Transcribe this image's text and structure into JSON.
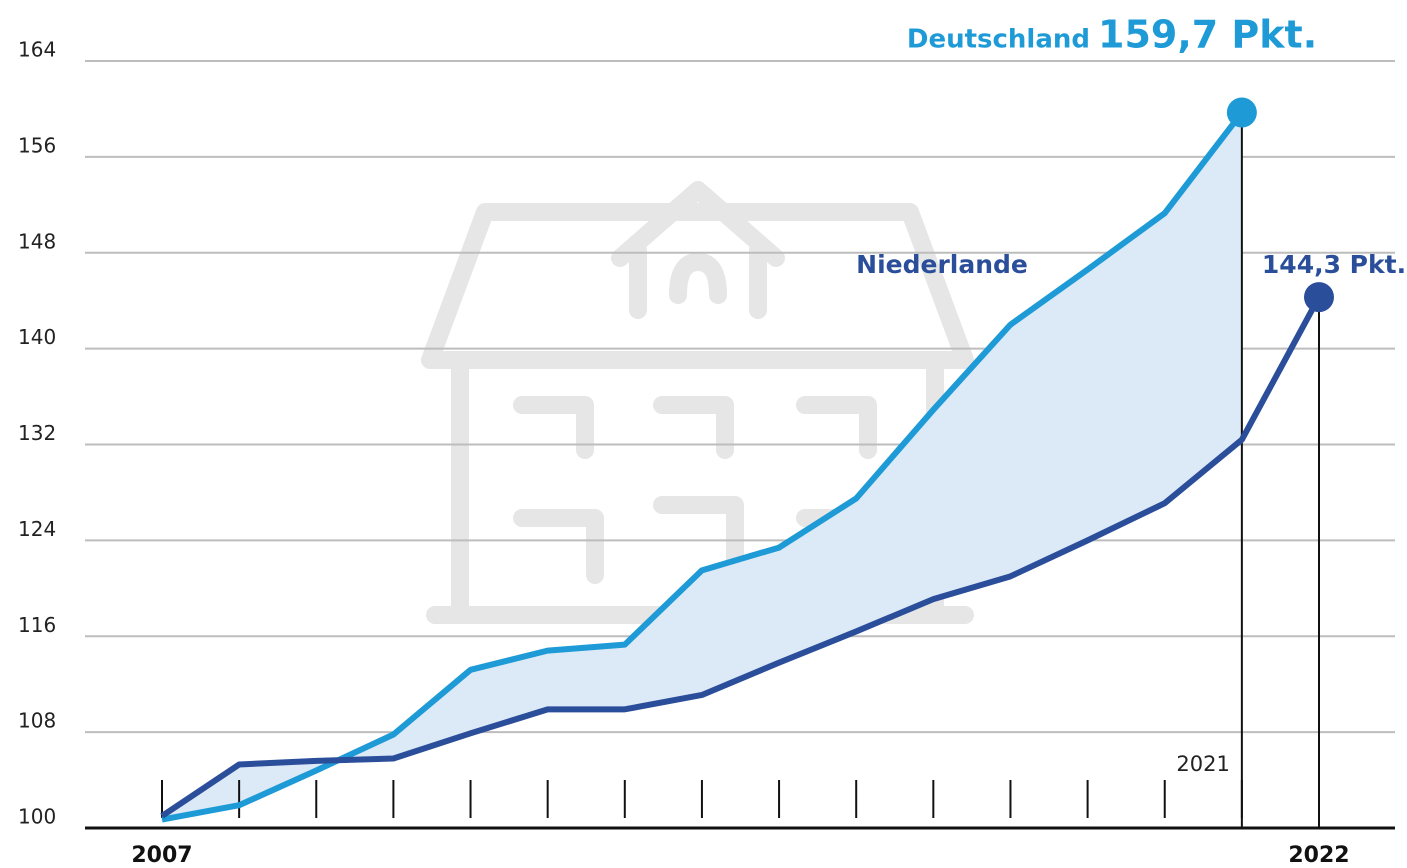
{
  "chart_data": {
    "type": "line",
    "x": [
      2007,
      2008,
      2009,
      2010,
      2011,
      2012,
      2013,
      2014,
      2015,
      2016,
      2017,
      2018,
      2019,
      2020,
      2021,
      2022
    ],
    "series": [
      {
        "name": "Deutschland",
        "color": "#1e9bd7",
        "values": [
          100.7,
          101.9,
          104.8,
          107.8,
          113.2,
          114.8,
          115.3,
          121.5,
          123.4,
          127.5,
          134.9,
          142.0,
          146.6,
          151.3,
          159.7,
          null
        ],
        "value_labels": [
          null,
          null,
          null,
          null,
          null,
          null,
          null,
          null,
          null,
          null,
          null,
          null,
          null,
          null,
          "159,7 Pkt.",
          null
        ]
      },
      {
        "name": "Niederlande",
        "color": "#2b4e9b",
        "values": [
          101.0,
          105.3,
          105.6,
          105.8,
          107.9,
          109.9,
          109.9,
          111.1,
          113.8,
          116.4,
          119.1,
          121.0,
          124.0,
          127.1,
          132.4,
          144.3
        ],
        "value_labels": [
          null,
          null,
          null,
          null,
          null,
          null,
          null,
          null,
          null,
          null,
          null,
          null,
          null,
          null,
          null,
          "144,3 Pkt."
        ]
      }
    ],
    "fill_between_color": "#dce9f7",
    "xlim": [
      2007,
      2022
    ],
    "xticks": [
      {
        "value": 2007,
        "label": "2007"
      },
      {
        "value": 2021,
        "label": "2021"
      },
      {
        "value": 2022,
        "label": "2022"
      }
    ],
    "ylim": [
      100,
      164
    ],
    "yticks": [
      100,
      108,
      116,
      124,
      132,
      140,
      148,
      156,
      164
    ],
    "grid": true
  }
}
